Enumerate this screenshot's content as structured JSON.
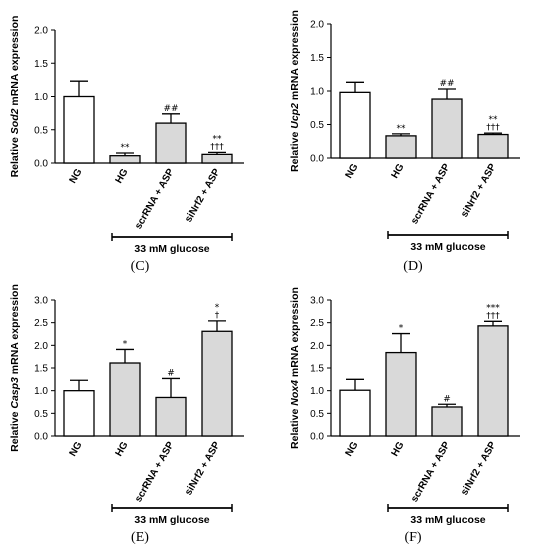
{
  "chart_data": [
    {
      "type": "bar",
      "panel_label": "(C)",
      "ylabel_prefix": "Relative",
      "ylabel_gene": "Sod2",
      "ylabel_suffix": "mRNA expression",
      "ylim": [
        0,
        2.0
      ],
      "yticks": [
        "0.0",
        "0.5",
        "1.0",
        "1.5",
        "2.0"
      ],
      "ytick_values": [
        0,
        0.5,
        1.0,
        1.5,
        2.0
      ],
      "categories": [
        "NG",
        "HG",
        "scrRNA + ASP",
        "siNrf2 + ASP"
      ],
      "values": [
        1.0,
        0.11,
        0.6,
        0.13
      ],
      "errors": [
        0.23,
        0.04,
        0.14,
        0.03
      ],
      "significance": [
        "",
        "**",
        "##",
        "**\n†††"
      ],
      "group_label": "33 mM glucose"
    },
    {
      "type": "bar",
      "panel_label": "(D)",
      "ylabel_prefix": "Relative",
      "ylabel_gene": "Ucp2",
      "ylabel_suffix": "mRNA expression",
      "ylim": [
        0,
        2.0
      ],
      "yticks": [
        "0.0",
        "0.5",
        "1.0",
        "1.5",
        "2.0"
      ],
      "ytick_values": [
        0,
        0.5,
        1.0,
        1.5,
        2.0
      ],
      "categories": [
        "NG",
        "HG",
        "scrRNA + ASP",
        "siNrf2 + ASP"
      ],
      "values": [
        0.98,
        0.33,
        0.88,
        0.35
      ],
      "errors": [
        0.15,
        0.03,
        0.15,
        0.02
      ],
      "significance": [
        "",
        "**",
        "##",
        "**\n†††"
      ],
      "group_label": "33 mM glucose"
    },
    {
      "type": "bar",
      "panel_label": "(E)",
      "ylabel_prefix": "Relative",
      "ylabel_gene": "Casp3",
      "ylabel_suffix": "mRNA expression",
      "ylim": [
        0,
        3.0
      ],
      "yticks": [
        "0.0",
        "0.5",
        "1.0",
        "1.5",
        "2.0",
        "2.5",
        "3.0"
      ],
      "ytick_values": [
        0,
        0.5,
        1.0,
        1.5,
        2.0,
        2.5,
        3.0
      ],
      "categories": [
        "NG",
        "HG",
        "scrRNA + ASP",
        "siNrf2 + ASP"
      ],
      "values": [
        1.0,
        1.61,
        0.85,
        2.31
      ],
      "errors": [
        0.23,
        0.3,
        0.42,
        0.23
      ],
      "significance": [
        "",
        "*",
        "#",
        "*\n†"
      ],
      "group_label": "33 mM glucose"
    },
    {
      "type": "bar",
      "panel_label": "(F)",
      "ylabel_prefix": "Relative",
      "ylabel_gene": "Nox4",
      "ylabel_suffix": "mRNA expression",
      "ylim": [
        0,
        3.0
      ],
      "yticks": [
        "0.0",
        "0.5",
        "1.0",
        "1.5",
        "2.0",
        "2.5",
        "3.0"
      ],
      "ytick_values": [
        0,
        0.5,
        1.0,
        1.5,
        2.0,
        2.5,
        3.0
      ],
      "categories": [
        "NG",
        "HG",
        "scrRNA + ASP",
        "siNrf2 + ASP"
      ],
      "values": [
        1.01,
        1.84,
        0.64,
        2.43
      ],
      "errors": [
        0.24,
        0.42,
        0.06,
        0.1
      ],
      "significance": [
        "",
        "*",
        "#",
        "***\n†††"
      ],
      "group_label": "33 mM glucose"
    }
  ],
  "colors": {
    "bar_white": "#ffffff",
    "bar_gray": "#d9d9d9",
    "stroke": "#000000"
  }
}
